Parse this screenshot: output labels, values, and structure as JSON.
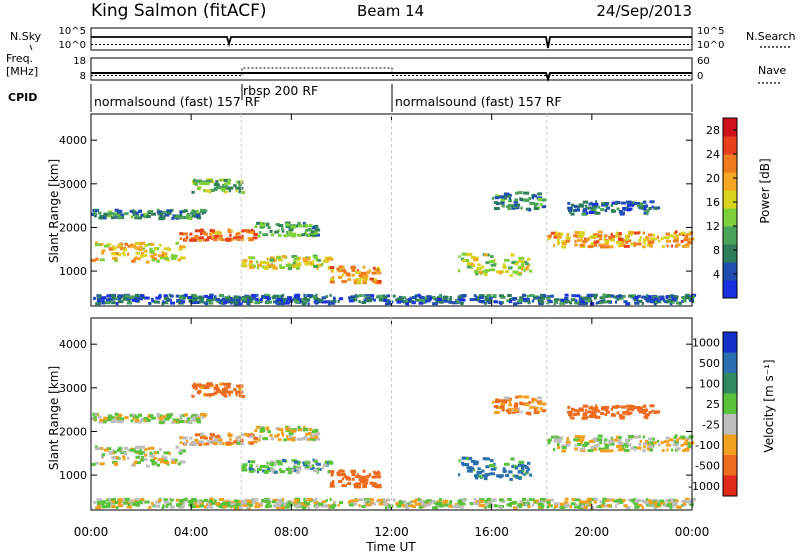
{
  "header": {
    "station": "King Salmon (fitACF)",
    "beam": "Beam 14",
    "date": "24/Sep/2013"
  },
  "panel_labels": {
    "nsky": "N.Sky",
    "freq": "Freq.",
    "freq_unit": "[MHz]",
    "cpid": "CPID",
    "nsearch": "N.Search",
    "nave": "Nave"
  },
  "noise_axis": {
    "top": "10^5",
    "bottom": "10^0"
  },
  "freq_axis": {
    "top": "18",
    "bottom": "8"
  },
  "nave_axis": {
    "top": "60",
    "bottom": "0"
  },
  "cpid": [
    {
      "label": "normalsound (fast) 157 RF",
      "start_hour": 0,
      "end_hour": 6
    },
    {
      "label": "rbsp 200 RF",
      "start_hour": 6,
      "end_hour": 12
    },
    {
      "label": "normalsound (fast) 157 RF",
      "start_hour": 12,
      "end_hour": 24
    }
  ],
  "axes": {
    "xlabel": "Time UT",
    "ylabel": "Slant Range [km]",
    "xticks": [
      "00:00",
      "04:00",
      "08:00",
      "12:00",
      "16:00",
      "20:00",
      "00:00"
    ],
    "yticks": [
      "1000",
      "2000",
      "3000",
      "4000"
    ]
  },
  "power_scale": {
    "label": "Power [dB]",
    "ticks": [
      "4",
      "8",
      "12",
      "16",
      "20",
      "24",
      "28"
    ],
    "colors": [
      "#1a2fe0",
      "#1e4fb0",
      "#2e7d5a",
      "#4aa35a",
      "#7fd13b",
      "#d9d320",
      "#f5a623",
      "#f07a1e",
      "#e8401c",
      "#d0101a"
    ]
  },
  "velocity_scale": {
    "label": "Velocity [m s⁻¹]",
    "ticks": [
      "1000",
      "500",
      "100",
      "25",
      "-25",
      "-100",
      "-500",
      "-1000"
    ],
    "colors": [
      "#1530c8",
      "#2a6fb0",
      "#2e8a5e",
      "#57c23a",
      "#bdbdbd",
      "#f2a020",
      "#ee6a1c",
      "#e02818"
    ]
  },
  "chart_data": {
    "type": "heatmap",
    "title": "King Salmon (fitACF) Beam 14 24/Sep/2013",
    "xlabel": "Time UT",
    "ylabel": "Slant Range [km]",
    "xlim_hours": [
      0,
      24
    ],
    "ylim_km": [
      200,
      4600
    ],
    "panels": [
      "Power [dB]",
      "Velocity [m s⁻¹]"
    ],
    "power_db_range": [
      0,
      30
    ],
    "velocity_range": [
      -1000,
      1000
    ],
    "scatter_regions": [
      {
        "t0": 0.0,
        "t1": 3.6,
        "r0": 1200,
        "r1": 1650,
        "power": 18,
        "velocity": 0
      },
      {
        "t0": 0.0,
        "t1": 4.5,
        "r0": 2200,
        "r1": 2400,
        "power": 8,
        "velocity": 20
      },
      {
        "t0": 3.5,
        "t1": 6.5,
        "r0": 1700,
        "r1": 1950,
        "power": 22,
        "velocity": -50
      },
      {
        "t0": 4.0,
        "t1": 6.0,
        "r0": 2800,
        "r1": 3100,
        "power": 12,
        "velocity": -150
      },
      {
        "t0": 6.0,
        "t1": 9.5,
        "r0": 1050,
        "r1": 1350,
        "power": 16,
        "velocity": 60
      },
      {
        "t0": 6.5,
        "t1": 9.0,
        "r0": 1800,
        "r1": 2100,
        "power": 10,
        "velocity": -20
      },
      {
        "t0": 9.5,
        "t1": 11.5,
        "r0": 700,
        "r1": 1100,
        "power": 20,
        "velocity": -300
      },
      {
        "t0": 14.5,
        "t1": 17.5,
        "r0": 900,
        "r1": 1400,
        "power": 16,
        "velocity": 150
      },
      {
        "t0": 16.0,
        "t1": 18.0,
        "r0": 2400,
        "r1": 2800,
        "power": 8,
        "velocity": -100
      },
      {
        "t0": 18.2,
        "t1": 24.0,
        "r0": 1550,
        "r1": 1900,
        "power": 20,
        "velocity": 0
      },
      {
        "t0": 19.0,
        "t1": 22.5,
        "r0": 2300,
        "r1": 2600,
        "power": 6,
        "velocity": -200
      },
      {
        "t0": 0.0,
        "t1": 24.0,
        "r0": 250,
        "r1": 450,
        "power": 6,
        "velocity": 10
      }
    ]
  }
}
